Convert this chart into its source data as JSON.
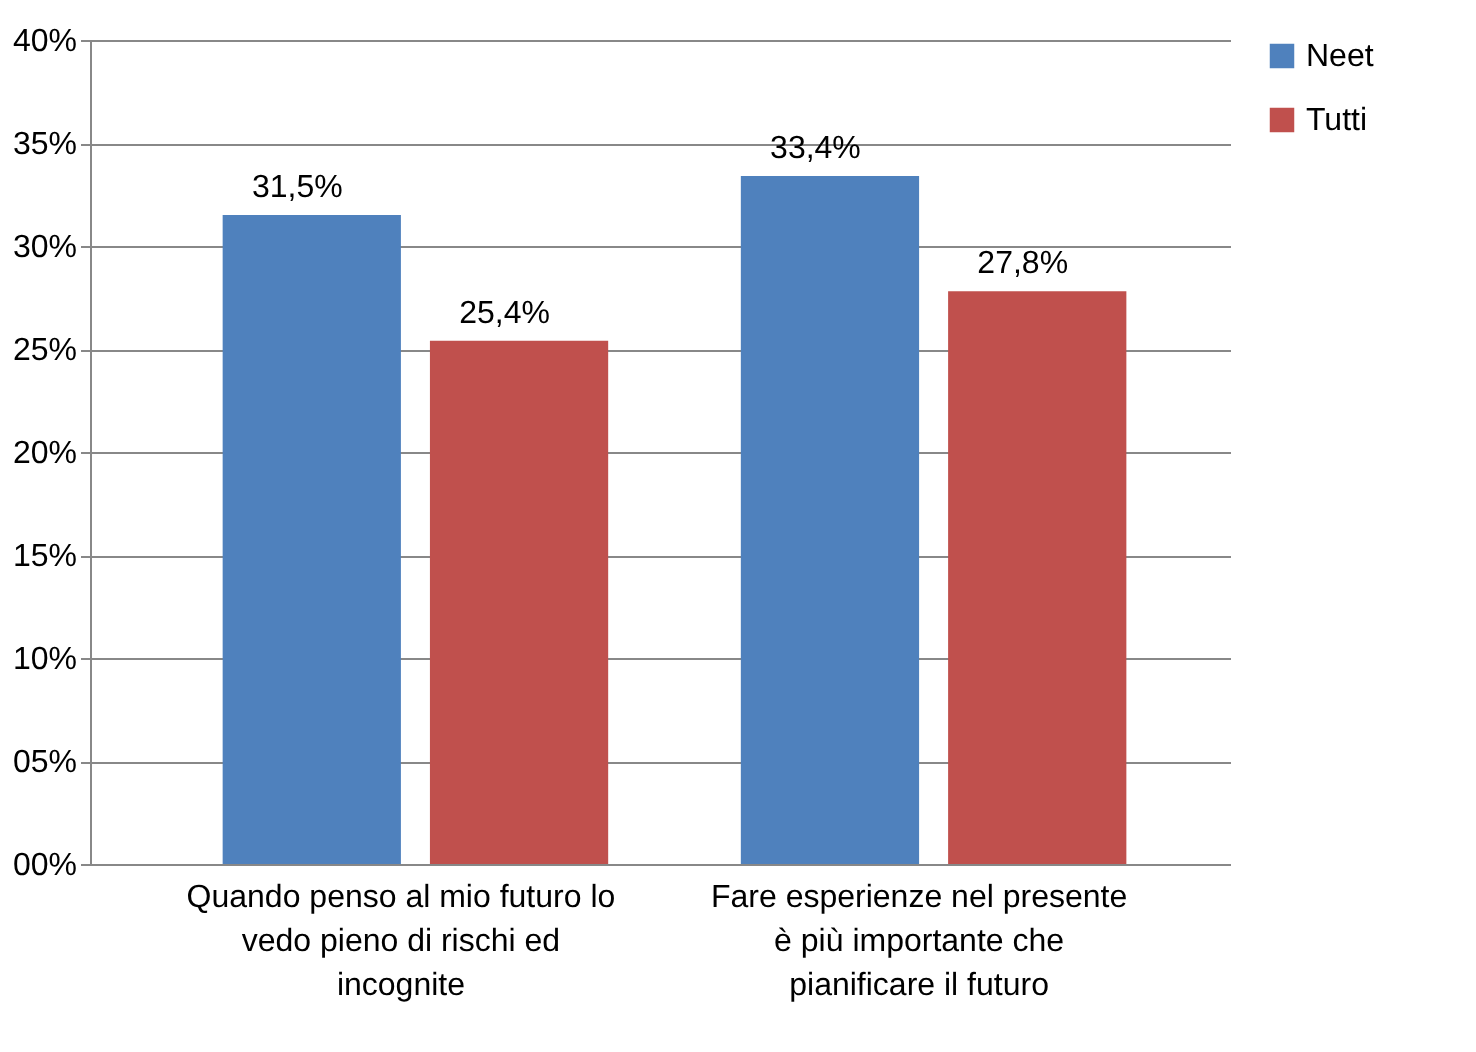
{
  "chart_data": {
    "type": "bar",
    "categories": [
      "Quando penso al mio futuro lo vedo pieno di rischi ed incognite",
      "Fare esperienze nel presente è più importante che pianificare il futuro"
    ],
    "series": [
      {
        "name": "Neet",
        "color": "#4f81bd",
        "values": [
          31.5,
          33.4
        ],
        "value_labels": [
          "31,5%",
          "33,4%"
        ]
      },
      {
        "name": "Tutti",
        "color": "#c0504d",
        "values": [
          25.4,
          27.8
        ],
        "value_labels": [
          "25,4%",
          "27,8%"
        ]
      }
    ],
    "ylim": [
      0,
      40
    ],
    "yticks": [
      {
        "value": 0,
        "label": "00%"
      },
      {
        "value": 5,
        "label": "05%"
      },
      {
        "value": 10,
        "label": "10%"
      },
      {
        "value": 15,
        "label": "15%"
      },
      {
        "value": 20,
        "label": "20%"
      },
      {
        "value": 25,
        "label": "25%"
      },
      {
        "value": 30,
        "label": "30%"
      },
      {
        "value": 35,
        "label": "35%"
      },
      {
        "value": 40,
        "label": "40%"
      }
    ],
    "grid": "y",
    "legend": "right"
  }
}
